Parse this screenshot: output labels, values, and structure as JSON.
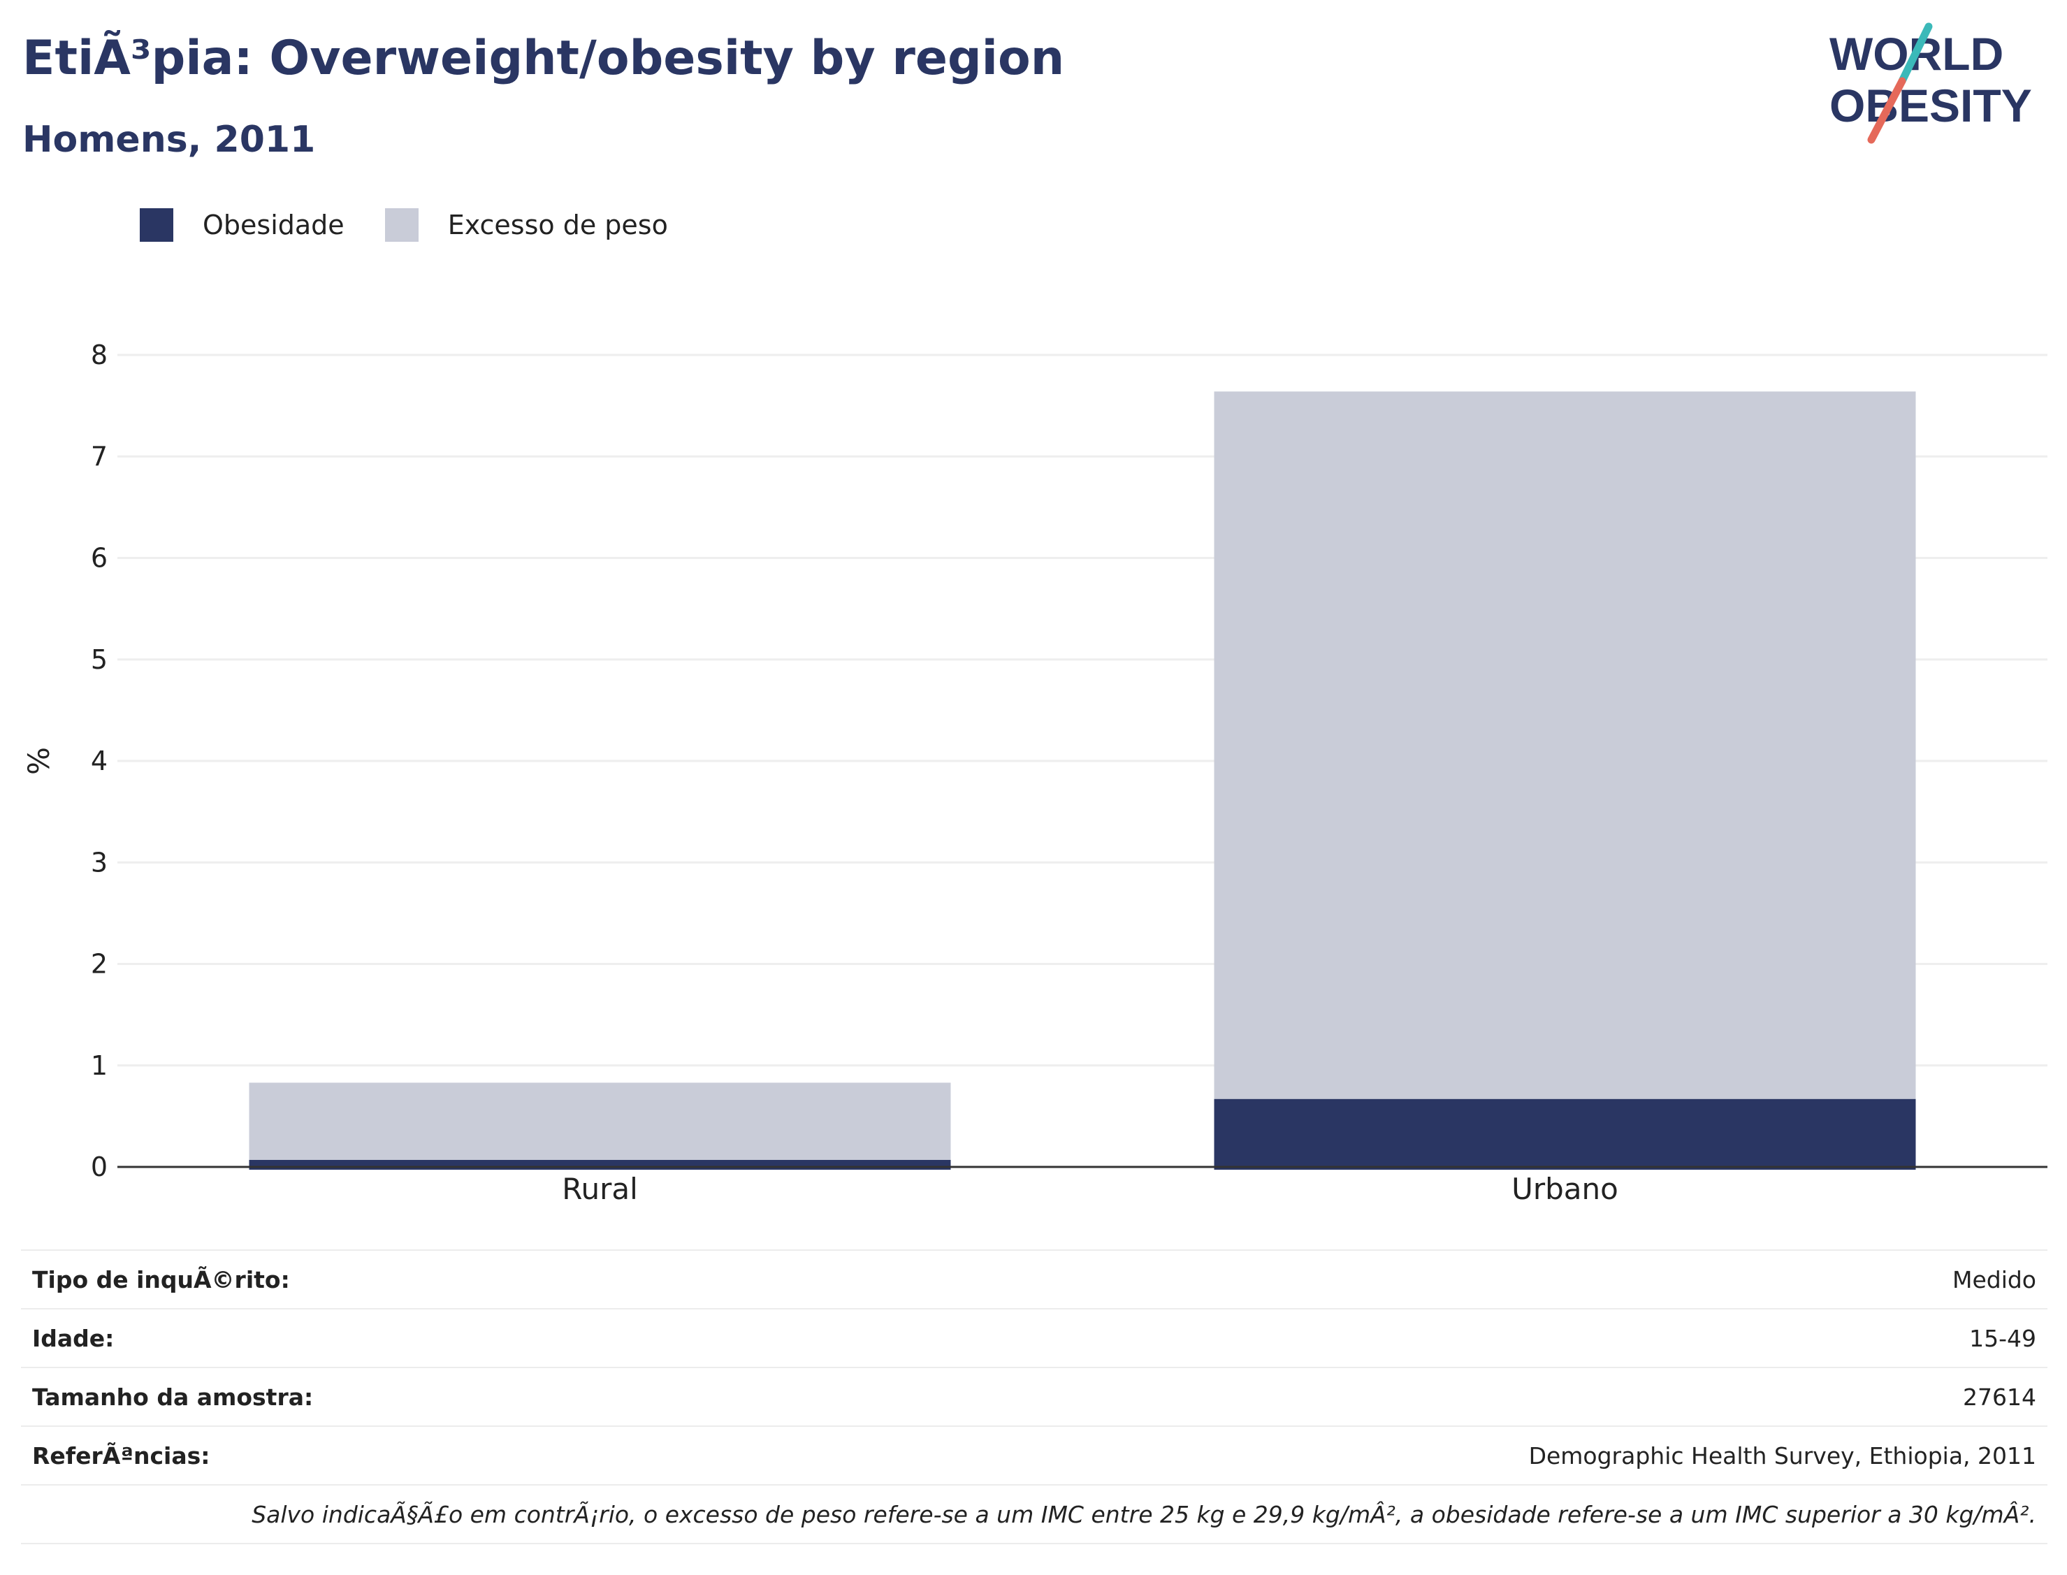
{
  "header": {
    "title": "EtiÃ³pia: Overweight/obesity by region",
    "subtitle": "Homens, 2011"
  },
  "logo": {
    "line1": "WORLD",
    "line2": "OBESITY",
    "colors": {
      "text": "#2a3663",
      "slash_top": "#3bb9b9",
      "slash_bottom": "#e5695a"
    }
  },
  "colors": {
    "obesity": "#2a3663",
    "overweight": "#c9ccd8",
    "grid": "#eeeeee",
    "axis": "#333333"
  },
  "chart_data": {
    "type": "bar",
    "stacked": true,
    "categories": [
      "Rural",
      "Urbano"
    ],
    "series": [
      {
        "name": "Obesidade",
        "values": [
          0.07,
          0.67
        ],
        "color": "#2a3663"
      },
      {
        "name": "Excesso de peso",
        "values": [
          0.76,
          6.97
        ],
        "color": "#c9ccd8"
      }
    ],
    "ylabel": "%",
    "ylim": [
      0,
      8
    ],
    "yticks": [
      0,
      1,
      2,
      3,
      4,
      5,
      6,
      7,
      8
    ],
    "grid": true,
    "legend_position": "top-left"
  },
  "info": {
    "rows": [
      {
        "key": "Tipo de inquÃ©rito:",
        "value": "Medido"
      },
      {
        "key": "Idade:",
        "value": "15-49"
      },
      {
        "key": "Tamanho da amostra:",
        "value": "27614"
      },
      {
        "key": "ReferÃªncias:",
        "value": "Demographic Health Survey, Ethiopia, 2011"
      }
    ],
    "note": "Salvo indicaÃ§Ã£o em contrÃ¡rio, o excesso de peso refere-se a um IMC entre 25 kg e 29,9 kg/mÂ², a obesidade refere-se a um IMC superior a 30 kg/mÂ²."
  }
}
